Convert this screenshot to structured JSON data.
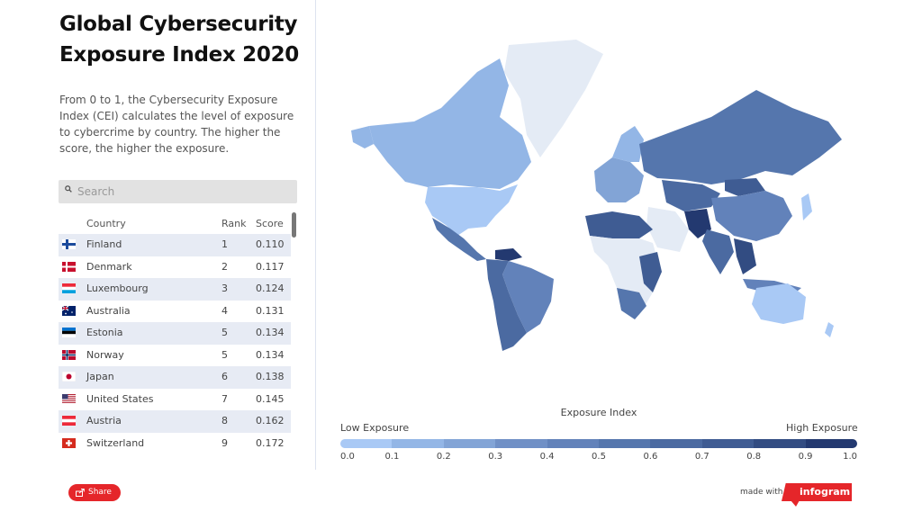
{
  "title": "Global Cybersecurity Exposure Index 2020",
  "description": "From 0 to 1, the Cybersecurity Exposure Index (CEI) calculates the level of exposure to cybercrime by country. The higher the score, the higher the exposure.",
  "search": {
    "placeholder": "Search"
  },
  "table": {
    "headers": {
      "country": "Country",
      "rank": "Rank",
      "score": "Score"
    },
    "rows": [
      {
        "country": "Finland",
        "rank": "1",
        "score": "0.110",
        "flag": "finland-flag"
      },
      {
        "country": "Denmark",
        "rank": "2",
        "score": "0.117",
        "flag": "denmark-flag"
      },
      {
        "country": "Luxembourg",
        "rank": "3",
        "score": "0.124",
        "flag": "luxembourg-flag"
      },
      {
        "country": "Australia",
        "rank": "4",
        "score": "0.131",
        "flag": "australia-flag"
      },
      {
        "country": "Estonia",
        "rank": "5",
        "score": "0.134",
        "flag": "estonia-flag"
      },
      {
        "country": "Norway",
        "rank": "5",
        "score": "0.134",
        "flag": "norway-flag"
      },
      {
        "country": "Japan",
        "rank": "6",
        "score": "0.138",
        "flag": "japan-flag"
      },
      {
        "country": "United States",
        "rank": "7",
        "score": "0.145",
        "flag": "united-states-flag"
      },
      {
        "country": "Austria",
        "rank": "8",
        "score": "0.162",
        "flag": "austria-flag"
      },
      {
        "country": "Switzerland",
        "rank": "9",
        "score": "0.172",
        "flag": "switzerland-flag"
      }
    ]
  },
  "legend": {
    "title": "Exposure Index",
    "low_label": "Low Exposure",
    "high_label": "High Exposure",
    "ticks": [
      "0.0",
      "0.1",
      "0.2",
      "0.3",
      "0.4",
      "0.5",
      "0.6",
      "0.7",
      "0.8",
      "0.9",
      "1.0"
    ],
    "colors": [
      "#a9c9f5",
      "#93b6e6",
      "#82a4d6",
      "#7090c6",
      "#6282ba",
      "#5576ad",
      "#4b6aa1",
      "#3f5c93",
      "#324c82",
      "#233970"
    ]
  },
  "footer": {
    "share_label": "Share",
    "made_with": "made with",
    "brand": "infogram"
  },
  "colors": {
    "accent": "#e5262a",
    "row_alt": "#e7ebf4",
    "map_empty": "#e4ebf5"
  }
}
